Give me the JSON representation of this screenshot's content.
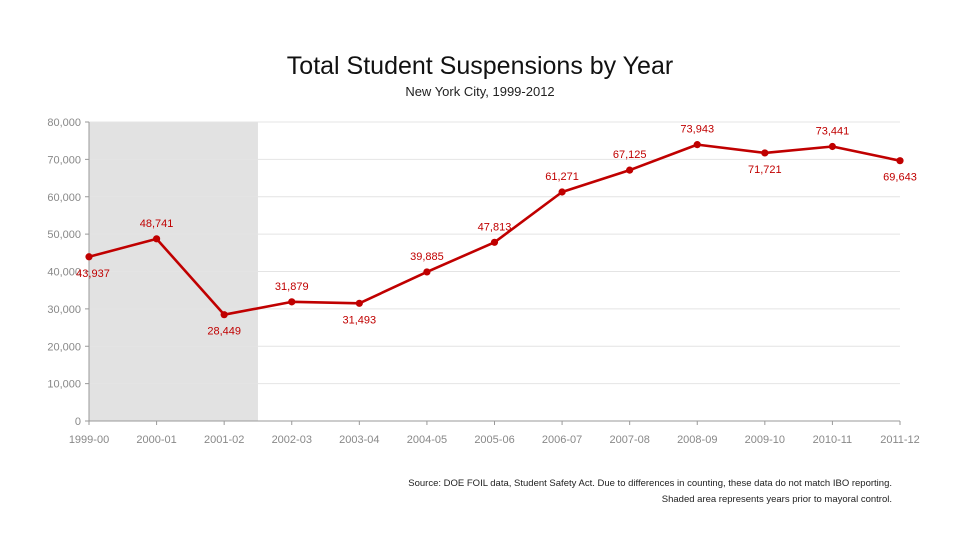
{
  "chart_data": {
    "type": "line",
    "title": "Total Student Suspensions by Year",
    "subtitle": "New York City, 1999-2012",
    "xlabel": "",
    "ylabel": "",
    "categories": [
      "1999-00",
      "2000-01",
      "2001-02",
      "2002-03",
      "2003-04",
      "2004-05",
      "2005-06",
      "2006-07",
      "2007-08",
      "2008-09",
      "2009-10",
      "2010-11",
      "2011-12"
    ],
    "series": [
      {
        "values": [
          43937,
          48741,
          28449,
          31879,
          31493,
          39885,
          47813,
          61271,
          67125,
          73943,
          71721,
          73441,
          69643
        ],
        "data_labels": [
          "43,937",
          "48,741",
          "28,449",
          "31,879",
          "31,493",
          "39,885",
          "47,813",
          "61,271",
          "67,125",
          "73,943",
          "71,721",
          "73,441",
          "69,643"
        ]
      }
    ],
    "ylim": [
      0,
      80000
    ],
    "yticks": [
      0,
      10000,
      20000,
      30000,
      40000,
      50000,
      60000,
      70000,
      80000
    ],
    "ytick_labels": [
      "0",
      "10,000",
      "20,000",
      "30,000",
      "40,000",
      "50,000",
      "60,000",
      "70,000",
      "80,000"
    ],
    "grid": true,
    "legend": "none",
    "shaded_categories": [
      "1999-00",
      "2000-01",
      "2001-02"
    ],
    "colors": {
      "line": "#c00000",
      "shade": "#e2e2e2",
      "grid": "#e4e4e4",
      "axis": "#999999"
    }
  },
  "notes": {
    "source": "Source: DOE FOIL data, Student Safety Act.  Due to differences in counting, these data do not match IBO reporting.",
    "shaded": "Shaded area represents years prior to mayoral control."
  }
}
